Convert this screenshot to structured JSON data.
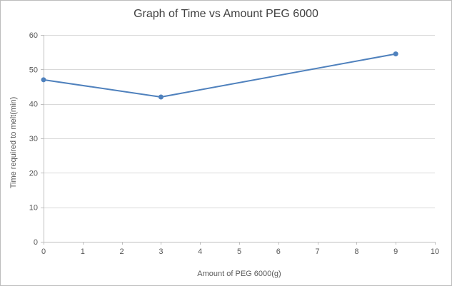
{
  "chart": {
    "title": "Graph of Time vs Amount PEG 6000",
    "xlabel": "Amount of PEG 6000(g)",
    "ylabel": "Time required to melt(min)"
  },
  "chart_data": {
    "type": "line",
    "title": "Graph of Time vs Amount PEG 6000",
    "xlabel": "Amount of PEG 6000(g)",
    "ylabel": "Time required to melt(min)",
    "x": [
      0,
      3,
      9
    ],
    "y": [
      47,
      42,
      54.5
    ],
    "xlim": [
      0,
      10
    ],
    "ylim": [
      0,
      60
    ],
    "x_ticks": [
      0,
      1,
      2,
      3,
      4,
      5,
      6,
      7,
      8,
      9,
      10
    ],
    "y_ticks": [
      0,
      10,
      20,
      30,
      40,
      50,
      60
    ],
    "grid": "horizontal",
    "legend": "none",
    "line_color": "#4f81bd",
    "marker_color": "#4f81bd",
    "grid_color": "#d9d9d9",
    "axis_color": "#bfbfbf",
    "text_color": "#595959"
  }
}
